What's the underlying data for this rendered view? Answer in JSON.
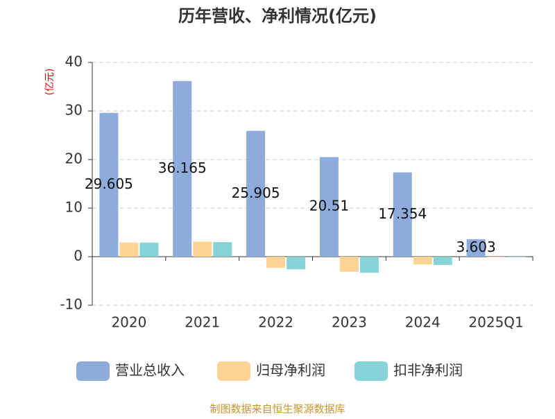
{
  "chart_data": {
    "type": "bar",
    "title": "历年营收、净利情况(亿元)",
    "y_label": "(亿元)",
    "categories": [
      "2020",
      "2021",
      "2022",
      "2023",
      "2024",
      "2025Q1"
    ],
    "series": [
      {
        "name": "营业总收入",
        "color": "#8eacdb",
        "values": [
          29.605,
          36.165,
          25.905,
          20.51,
          17.354,
          3.603
        ]
      },
      {
        "name": "归母净利润",
        "color": "#fdd493",
        "values": [
          2.9,
          3.1,
          -2.3,
          -3.1,
          -1.6,
          -0.1
        ]
      },
      {
        "name": "扣非净利润",
        "color": "#85d4d7",
        "values": [
          2.9,
          3.0,
          -2.6,
          -3.3,
          -1.7,
          -0.1
        ]
      }
    ],
    "ylim": [
      -10,
      40
    ],
    "yticks": [
      -10,
      0,
      10,
      20,
      30,
      40
    ],
    "grid": true,
    "source": "制图数据来自恒生聚源数据库"
  }
}
